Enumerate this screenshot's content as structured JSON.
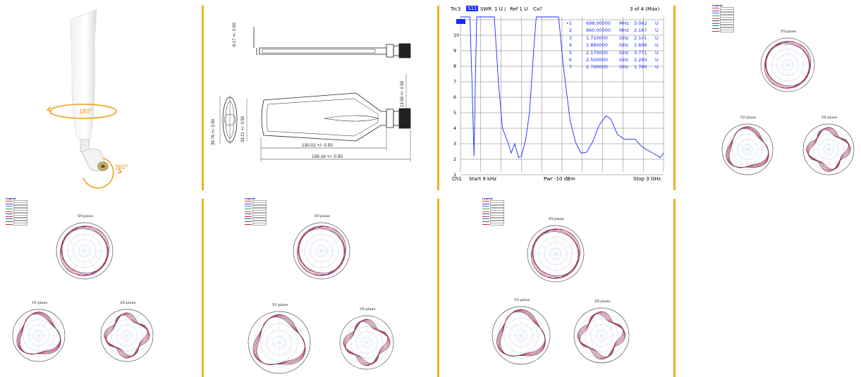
{
  "rotation": {
    "vertical": "180°",
    "horizontal": "360°"
  },
  "drawing": {
    "dims": {
      "top_thickness": "6.17 +/- 0.50",
      "side_thickness": "39.76 +/- 0.50",
      "blade_width": "33.21 +/- 0.50",
      "connector_len": "13.50 +/- 0.50",
      "blade_len": "130.01 +/- 0.50",
      "total_len": "156.16 +/- 0.50"
    }
  },
  "vna": {
    "header": {
      "trc": "Trc3",
      "param": "S11",
      "fmt": "SWR",
      "scale": "1 U /",
      "ref": "Ref 1 U",
      "cal": "Ca?",
      "count": "3 of 4 (Max)"
    },
    "y_ticks": [
      "10",
      "9",
      "8",
      "7",
      "6",
      "5",
      "4",
      "3",
      "2",
      "1"
    ],
    "markers": [
      {
        "id": "•1",
        "freq": "698.00000",
        "unit": "MHz",
        "val": "3.062",
        "u": "U"
      },
      {
        "id": "2",
        "freq": "960.00000",
        "unit": "MHz",
        "val": "2.187",
        "u": "U"
      },
      {
        "id": "3",
        "freq": "1.710000",
        "unit": "GHz",
        "val": "2.141",
        "u": "U"
      },
      {
        "id": "4",
        "freq": "1.880000",
        "unit": "GHz",
        "val": "1.606",
        "u": "U"
      },
      {
        "id": "5",
        "freq": "2.170000",
        "unit": "GHz",
        "val": "3.771",
        "u": "U"
      },
      {
        "id": "6",
        "freq": "2.500000",
        "unit": "GHz",
        "val": "2.290",
        "u": "U"
      },
      {
        "id": "7",
        "freq": "2.700000",
        "unit": "GHz",
        "val": "1.780",
        "u": "U"
      }
    ],
    "footer": {
      "ch": "Ch1",
      "start": "Start 9 kHz",
      "pwr": "Pwr -10 dBm",
      "stop": "Stop 3 GHz"
    }
  },
  "plane_labels": {
    "xy": "XY-plane",
    "yz": "YZ-plane",
    "zx": "ZX-plane"
  },
  "legend_title": "Legend",
  "colors": {
    "separator": "#f0b21f",
    "trace": "#1a2bff",
    "rotation_arrow": "#f0a020"
  }
}
